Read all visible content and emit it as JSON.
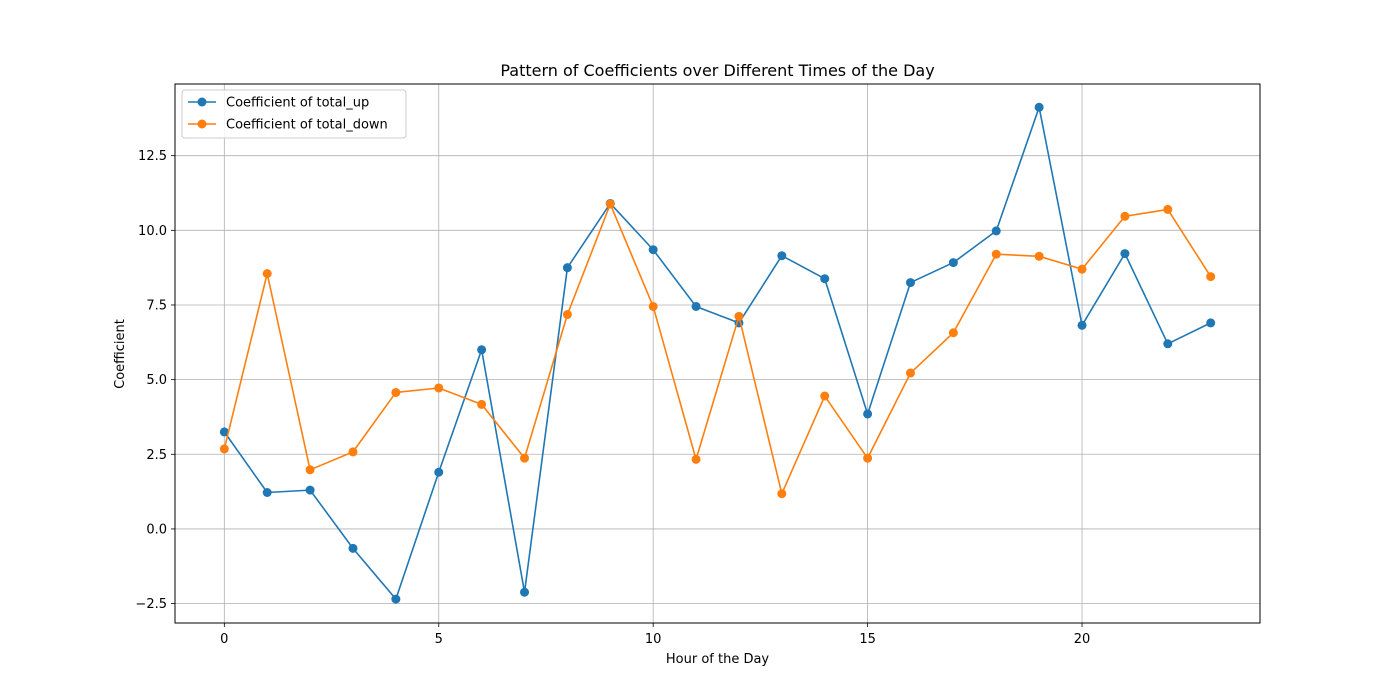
{
  "chart_data": {
    "type": "line",
    "title": "Pattern of Coefficients over Different Times of the Day",
    "xlabel": "Hour of the Day",
    "ylabel": "Coefficient",
    "x": [
      0,
      1,
      2,
      3,
      4,
      5,
      6,
      7,
      8,
      9,
      10,
      11,
      12,
      13,
      14,
      15,
      16,
      17,
      18,
      19,
      20,
      21,
      22,
      23
    ],
    "xlim": [
      -1.15,
      24.15
    ],
    "ylim": [
      -3.15,
      14.9
    ],
    "xticks": [
      0,
      5,
      10,
      15,
      20
    ],
    "xtick_labels": [
      "0",
      "5",
      "10",
      "15",
      "20"
    ],
    "yticks": [
      -2.5,
      0.0,
      2.5,
      5.0,
      7.5,
      10.0,
      12.5
    ],
    "ytick_labels": [
      "−2.5",
      "0.0",
      "2.5",
      "5.0",
      "7.5",
      "10.0",
      "12.5"
    ],
    "grid": true,
    "legend_position": "top-left",
    "series": [
      {
        "name": "Coefficient of total_up",
        "color": "#1f77b4",
        "values": [
          3.25,
          1.22,
          1.3,
          -0.65,
          -2.35,
          1.9,
          6.0,
          -2.12,
          8.75,
          10.9,
          9.35,
          7.45,
          6.9,
          9.15,
          8.38,
          3.85,
          8.25,
          8.92,
          9.98,
          14.12,
          6.82,
          9.22,
          6.2,
          6.9
        ]
      },
      {
        "name": "Coefficient of total_down",
        "color": "#ff7f0e",
        "values": [
          2.68,
          8.55,
          1.98,
          2.58,
          4.57,
          4.72,
          4.17,
          2.37,
          7.18,
          10.88,
          7.45,
          2.33,
          7.12,
          1.18,
          4.45,
          2.37,
          5.22,
          6.57,
          9.2,
          9.13,
          8.7,
          10.47,
          10.7,
          8.45
        ]
      }
    ]
  }
}
